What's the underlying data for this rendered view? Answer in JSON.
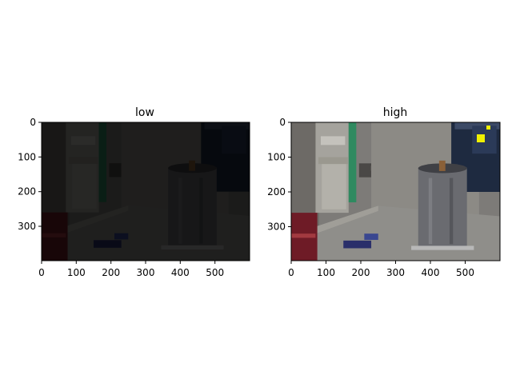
{
  "panels": [
    {
      "title": "low",
      "x_ticks": [
        "0",
        "100",
        "200",
        "300",
        "400",
        "500"
      ],
      "y_ticks": [
        "0",
        "100",
        "200",
        "300"
      ]
    },
    {
      "title": "high",
      "x_ticks": [
        "0",
        "100",
        "200",
        "300",
        "400",
        "500"
      ],
      "y_ticks": [
        "0",
        "100",
        "200",
        "300"
      ]
    }
  ]
}
